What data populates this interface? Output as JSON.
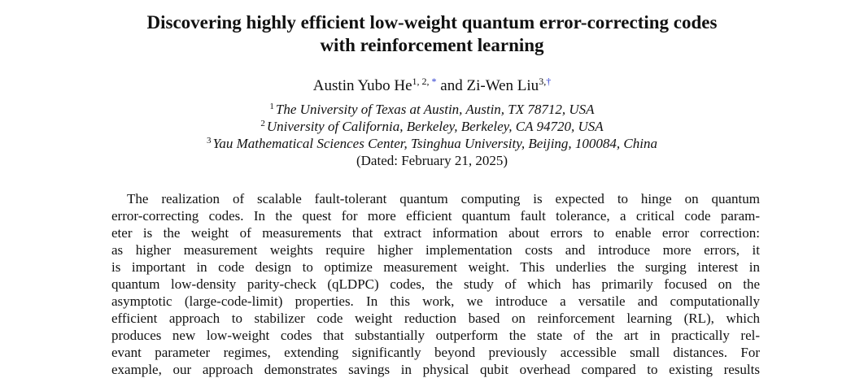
{
  "paper": {
    "title_line_1": "Discovering highly efficient low-weight quantum error-correcting codes",
    "title_line_2": "with reinforcement learning",
    "authors": [
      {
        "name": "Austin Yubo He",
        "affil_refs": "1, 2,",
        "mark": "*"
      },
      {
        "name": "Zi-Wen Liu",
        "affil_refs": "3,",
        "mark": "†"
      }
    ],
    "author_separator": "and",
    "affiliations": [
      {
        "ref": "1",
        "text": "The University of Texas at Austin, Austin, TX 78712, USA"
      },
      {
        "ref": "2",
        "text": "University of California, Berkeley, Berkeley, CA 94720, USA"
      },
      {
        "ref": "3",
        "text": "Yau Mathematical Sciences Center, Tsinghua University, Beijing, 100084, China"
      }
    ],
    "dated": "(Dated: February 21, 2025)",
    "abstract_lines": [
      "The realization of scalable fault-tolerant quantum computing is expected to hinge on quantum",
      "error-correcting codes. In the quest for more efficient quantum fault tolerance, a critical code param-",
      "eter is the weight of measurements that extract information about errors to enable error correction:",
      "as higher measurement weights require higher implementation costs and introduce more errors, it",
      "is important in code design to optimize measurement weight. This underlies the surging interest in",
      "quantum low-density parity-check (qLDPC) codes, the study of which has primarily focused on the",
      "asymptotic (large-code-limit) properties. In this work, we introduce a versatile and computationally",
      "efficient approach to stabilizer code weight reduction based on reinforcement learning (RL), which",
      "produces new low-weight codes that substantially outperform the state of the art in practically rel-",
      "evant parameter regimes, extending significantly beyond previously accessible small distances. For",
      "example, our approach demonstrates savings in physical qubit overhead compared to existing results"
    ]
  }
}
